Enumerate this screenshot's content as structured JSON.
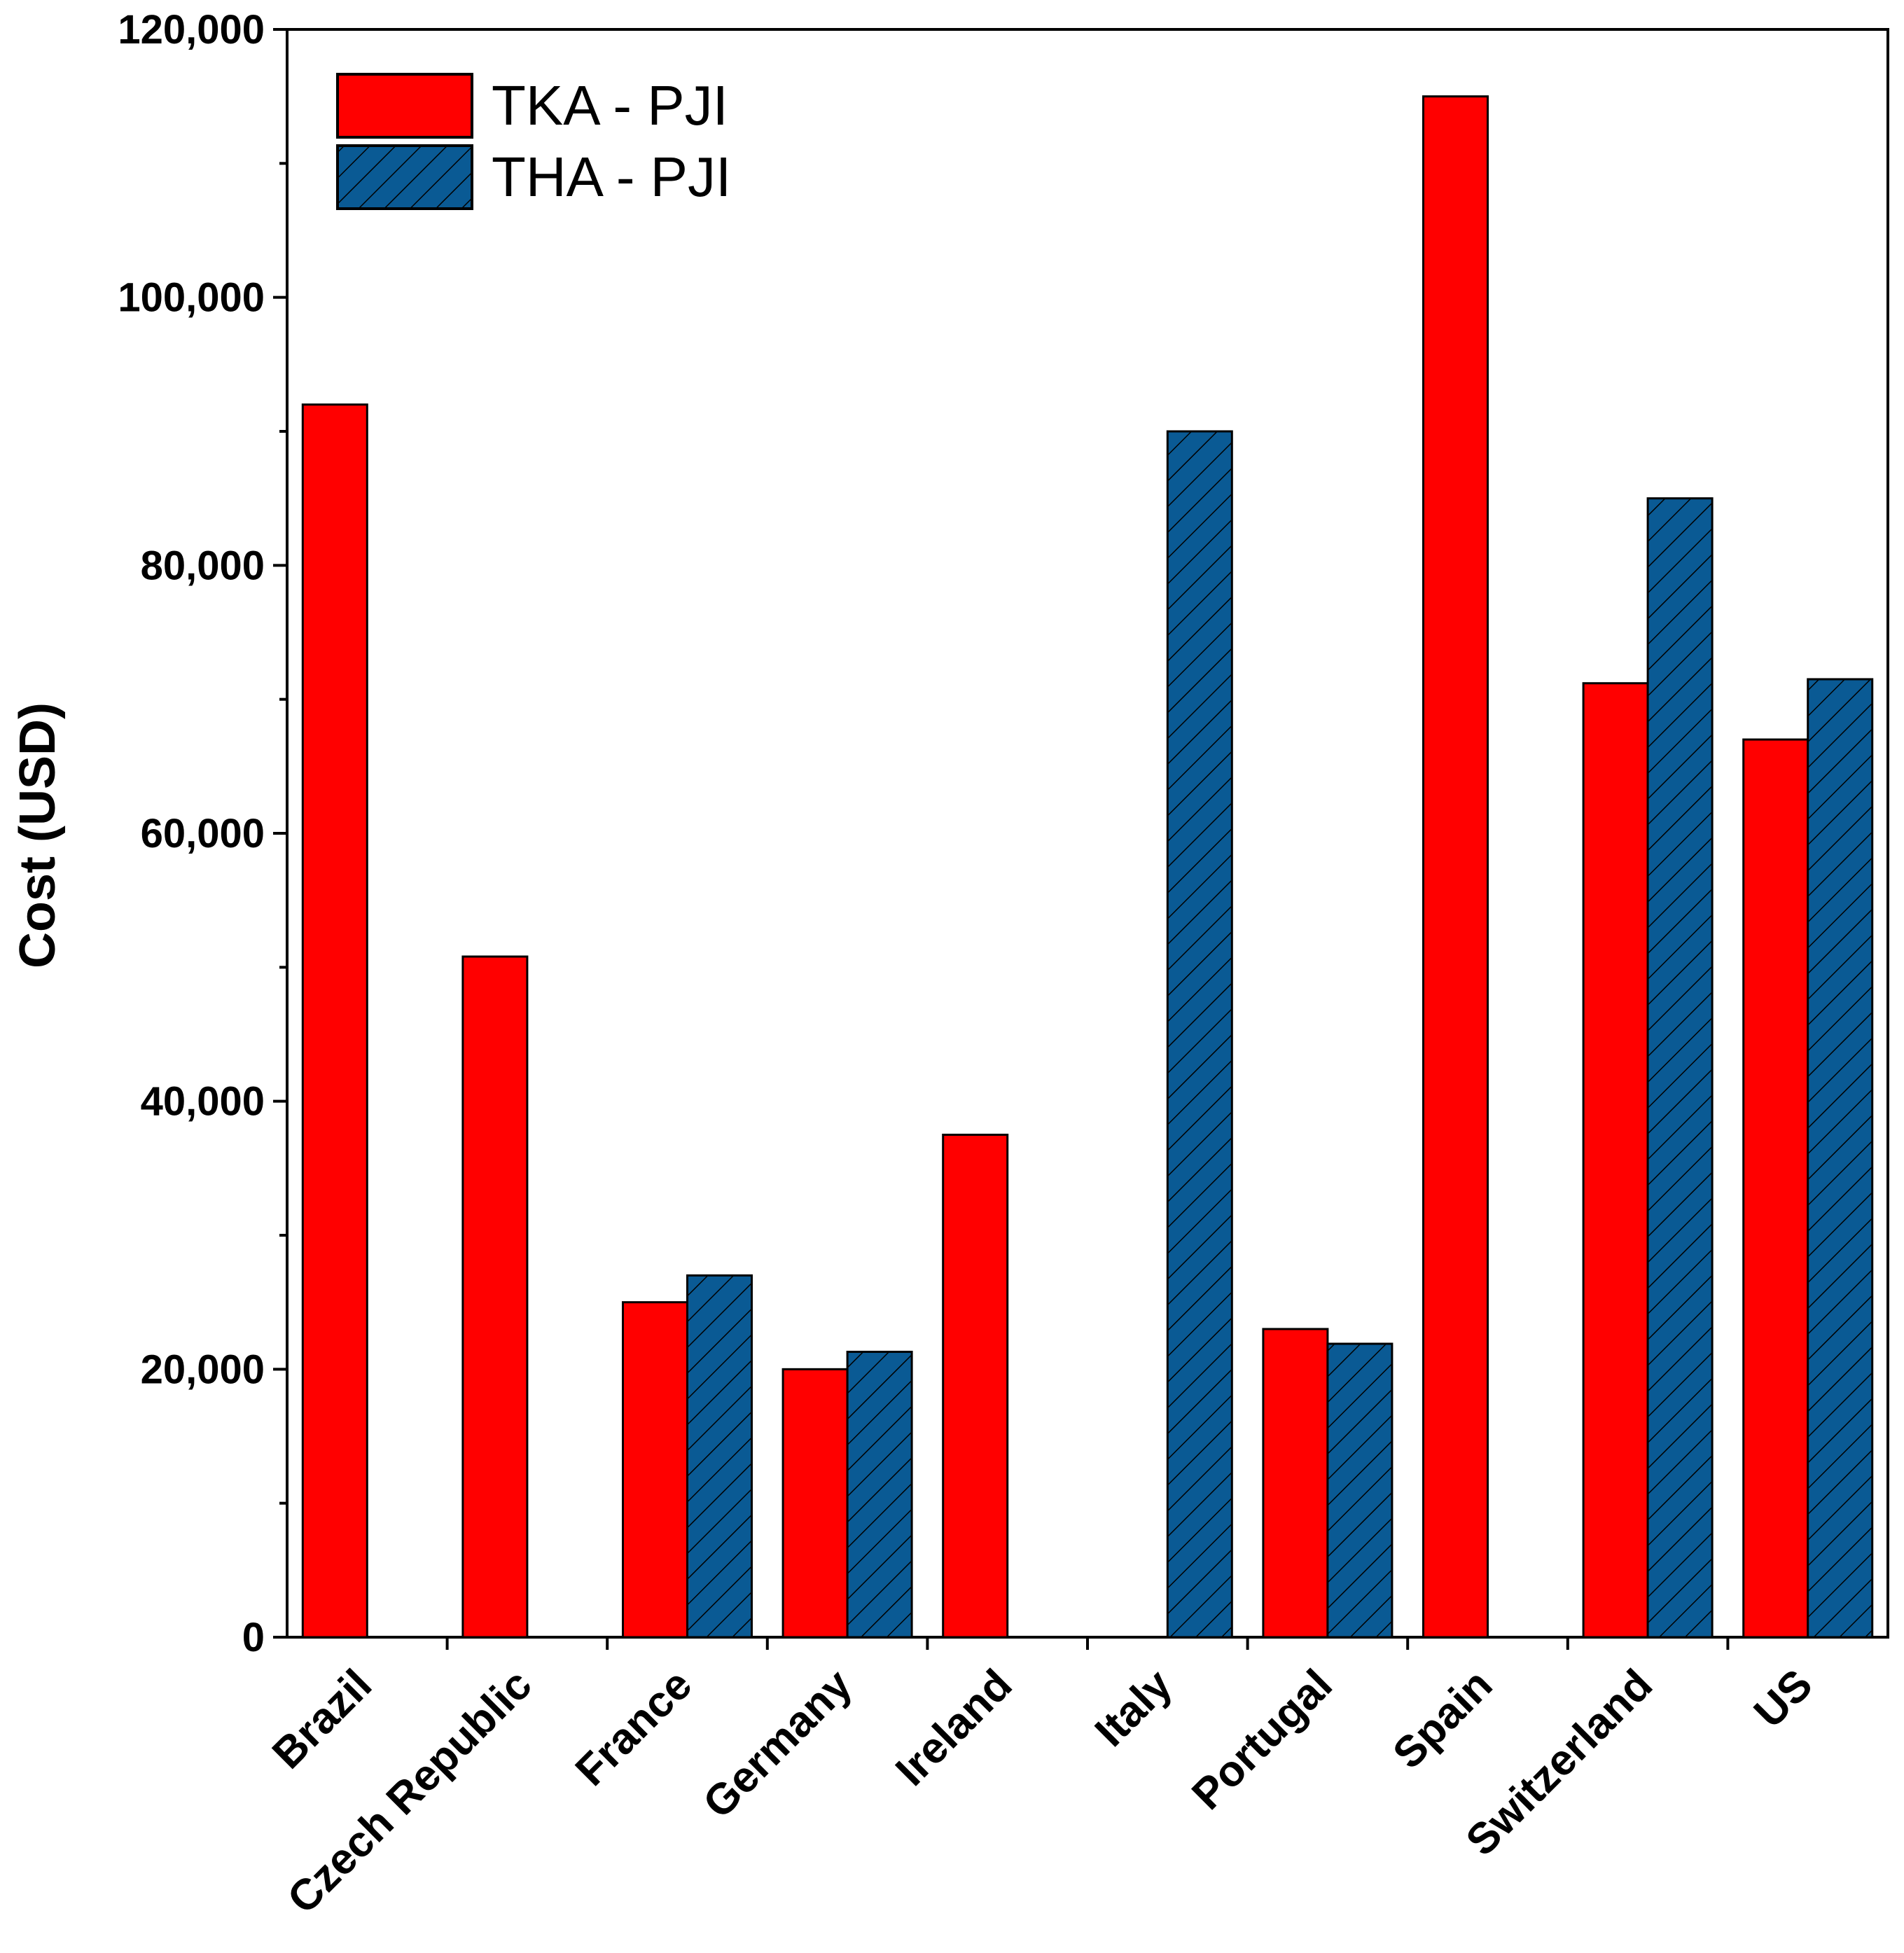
{
  "chart_data": {
    "type": "bar",
    "ylabel": "Cost (USD)",
    "xlabel": "",
    "ylim": [
      0,
      120000
    ],
    "yticks": [
      0,
      20000,
      40000,
      60000,
      80000,
      100000,
      120000
    ],
    "ytick_labels": [
      "0",
      "20,000",
      "40,000",
      "60,000",
      "80,000",
      "100,000",
      "120,000"
    ],
    "minor_tick_step": 10000,
    "grid": false,
    "legend_position": "top-left",
    "categories": [
      "Brazil",
      "Czech Republic",
      "France",
      "Germany",
      "Ireland",
      "Italy",
      "Portugal",
      "Spain",
      "Switzerland",
      "US"
    ],
    "series": [
      {
        "name": "TKA - PJI",
        "color": "#ff0000",
        "pattern": "solid",
        "values": [
          92000,
          50800,
          25000,
          20000,
          37500,
          null,
          23000,
          115000,
          71200,
          67000
        ]
      },
      {
        "name": "THA - PJI",
        "color": "#0a5a94",
        "pattern": "diagonal-hatch",
        "values": [
          null,
          null,
          27000,
          21300,
          null,
          90000,
          21900,
          null,
          85000,
          71500
        ]
      }
    ]
  }
}
